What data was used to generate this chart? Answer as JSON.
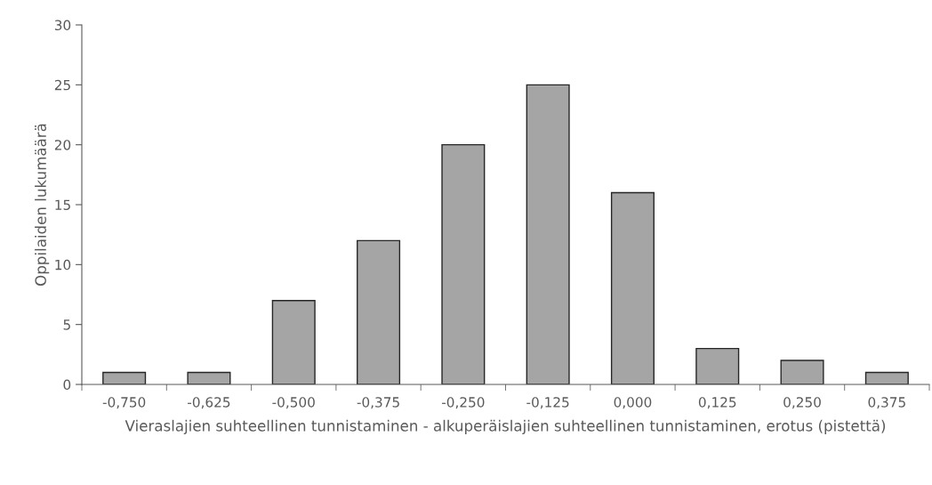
{
  "chart_data": {
    "type": "bar",
    "categories": [
      "-0,750",
      "-0,625",
      "-0,500",
      "-0,375",
      "-0,250",
      "-0,125",
      "0,000",
      "0,125",
      "0,250",
      "0,375"
    ],
    "values": [
      1,
      1,
      7,
      12,
      20,
      25,
      16,
      3,
      2,
      1
    ],
    "color": "#a5a5a5",
    "xlabel": "Vieraslajien suhteellinen tunnistaminen - alkuperäislajien suhteellinen tunnistaminen, erotus (pistettä)",
    "ylabel": "Oppilaiden lukumäärä",
    "ylim": [
      0,
      30
    ],
    "yticks": [
      0,
      5,
      10,
      15,
      20,
      25,
      30
    ],
    "grid": false,
    "legend": false
  }
}
